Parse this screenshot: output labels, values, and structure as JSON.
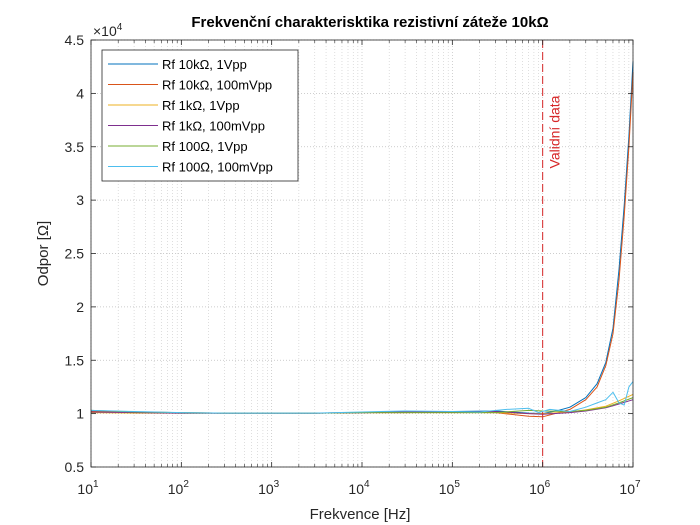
{
  "chart_data": {
    "type": "line",
    "title": "Frekvenční charakterisktika rezistivní záteže 10kΩ",
    "xlabel": "Frekvence [Hz]",
    "ylabel": "Odpor [Ω]",
    "x_scale": "log",
    "xlim": [
      10,
      10000000
    ],
    "ylim": [
      5000,
      45000
    ],
    "y_exponent_label": "×10",
    "y_exponent_power": "4",
    "x_tick_base": "10",
    "x_ticks": [
      {
        "value": 10,
        "exp": "1"
      },
      {
        "value": 100,
        "exp": "2"
      },
      {
        "value": 1000,
        "exp": "3"
      },
      {
        "value": 10000,
        "exp": "4"
      },
      {
        "value": 100000,
        "exp": "5"
      },
      {
        "value": 1000000,
        "exp": "6"
      },
      {
        "value": 10000000,
        "exp": "7"
      }
    ],
    "y_ticks": [
      {
        "value": 5000,
        "label": "0.5"
      },
      {
        "value": 10000,
        "label": "1"
      },
      {
        "value": 15000,
        "label": "1.5"
      },
      {
        "value": 20000,
        "label": "2"
      },
      {
        "value": 25000,
        "label": "2.5"
      },
      {
        "value": 30000,
        "label": "3"
      },
      {
        "value": 35000,
        "label": "3.5"
      },
      {
        "value": 40000,
        "label": "4"
      },
      {
        "value": 45000,
        "label": "4.5"
      }
    ],
    "grid": true,
    "legend_position": "top-left",
    "annotation": {
      "text": "Validní data",
      "x": 1000000,
      "color": "#d62728"
    },
    "series": [
      {
        "name": "Rf 10kΩ, 1Vpp",
        "color": "#0072bd",
        "x": [
          10,
          30,
          100,
          300,
          1000,
          3000,
          10000,
          30000,
          100000,
          300000,
          700000,
          1000000,
          1500000,
          2000000,
          3000000,
          4000000,
          5000000,
          6000000,
          7000000,
          8000000,
          9000000,
          10000000
        ],
        "y": [
          10150,
          10100,
          10050,
          10050,
          10050,
          10050,
          10100,
          10150,
          10200,
          10250,
          10050,
          10000,
          10300,
          10600,
          11500,
          12800,
          14800,
          18000,
          23500,
          29500,
          36000,
          43000
        ]
      },
      {
        "name": "Rf 10kΩ, 100mVpp",
        "color": "#d95319",
        "x": [
          10,
          30,
          100,
          300,
          1000,
          3000,
          10000,
          30000,
          100000,
          300000,
          700000,
          1000000,
          1500000,
          2000000,
          3000000,
          4000000,
          5000000,
          6000000,
          7000000,
          8000000,
          9000000,
          10000000
        ],
        "y": [
          10200,
          10150,
          10100,
          10050,
          10050,
          10050,
          10100,
          10100,
          10150,
          10100,
          9750,
          9700,
          10100,
          10400,
          11300,
          12500,
          14500,
          17500,
          22500,
          28500,
          35000,
          42000
        ]
      },
      {
        "name": "Rf 1kΩ, 1Vpp",
        "color": "#edb120",
        "x": [
          10,
          30,
          100,
          300,
          1000,
          3000,
          10000,
          30000,
          100000,
          300000,
          700000,
          1000000,
          2000000,
          3000000,
          5000000,
          7000000,
          10000000
        ],
        "y": [
          10100,
          10050,
          10050,
          10050,
          10050,
          10050,
          10100,
          10100,
          10100,
          10100,
          10000,
          10000,
          10150,
          10350,
          10700,
          11200,
          11800
        ]
      },
      {
        "name": "Rf 1kΩ, 100mVpp",
        "color": "#7e2f8e",
        "x": [
          10,
          30,
          100,
          300,
          1000,
          3000,
          10000,
          30000,
          100000,
          300000,
          700000,
          1000000,
          2000000,
          3000000,
          5000000,
          7000000,
          10000000
        ],
        "y": [
          10150,
          10100,
          10050,
          10050,
          10050,
          10050,
          10100,
          10150,
          10150,
          10200,
          10000,
          9950,
          10100,
          10250,
          10550,
          10900,
          11300
        ]
      },
      {
        "name": "Rf 100Ω, 1Vpp",
        "color": "#77ac30",
        "x": [
          10,
          30,
          100,
          300,
          1000,
          3000,
          10000,
          30000,
          100000,
          300000,
          700000,
          1000000,
          2000000,
          3000000,
          5000000,
          7000000,
          10000000
        ],
        "y": [
          10300,
          10150,
          10100,
          10050,
          10050,
          10050,
          10100,
          10100,
          10100,
          10100,
          10300,
          10250,
          10200,
          10300,
          10600,
          11000,
          11500
        ]
      },
      {
        "name": "Rf 100Ω, 100mVpp",
        "color": "#4dbeee",
        "x": [
          10,
          30,
          100,
          300,
          1000,
          3000,
          10000,
          30000,
          100000,
          200000,
          400000,
          700000,
          900000,
          1200000,
          2000000,
          3000000,
          4000000,
          5000000,
          6000000,
          7000000,
          8000000,
          9000000,
          10000000
        ],
        "y": [
          10300,
          10200,
          10100,
          10050,
          10050,
          10050,
          10150,
          10250,
          10200,
          10150,
          10400,
          10500,
          10100,
          10400,
          10200,
          10600,
          11000,
          11300,
          12000,
          11000,
          10800,
          12500,
          13000
        ]
      }
    ]
  }
}
